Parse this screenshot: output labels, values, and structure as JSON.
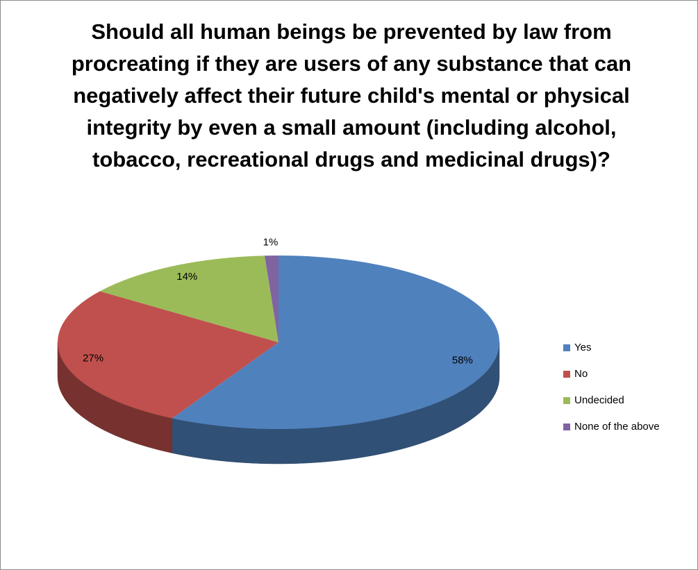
{
  "chart_data": {
    "type": "pie",
    "title": "Should all human beings be prevented by law from procreating if they are users of any substance that can negatively affect their future child's mental or physical integrity by even a small amount (including alcohol, tobacco, recreational drugs and medicinal drugs)?",
    "categories": [
      "Yes",
      "No",
      "Undecided",
      "None of the above"
    ],
    "values": [
      58,
      27,
      14,
      1
    ],
    "value_labels": [
      "58%",
      "27%",
      "14%",
      "1%"
    ],
    "colors": [
      "#4f81bd",
      "#c0504d",
      "#9bbb59",
      "#8064a2"
    ],
    "legend": "right"
  }
}
